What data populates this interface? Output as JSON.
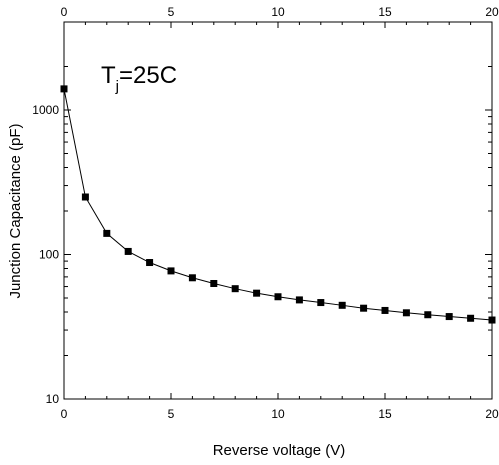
{
  "chart_data": {
    "type": "scatter",
    "title": "",
    "xlabel": "Reverse voltage (V)",
    "ylabel": "Junction Capacitance (pF)",
    "xlim": [
      0,
      20
    ],
    "ylim": [
      10,
      2000
    ],
    "yscale": "log",
    "grid": false,
    "x_ticks": [
      "0",
      "5",
      "10",
      "15",
      "20"
    ],
    "top_x_ticks": [
      "0",
      "5",
      "10",
      "15",
      "20"
    ],
    "y_tick_labels": [
      "10",
      "100",
      "1000"
    ],
    "annotation": {
      "main": "T",
      "sub": "j",
      "rest": "=25C"
    },
    "marker": "square",
    "series": [
      {
        "x": [
          0,
          1,
          2,
          3,
          4,
          5,
          6,
          7,
          8,
          9,
          10,
          11,
          12,
          13,
          14,
          15,
          16,
          17,
          18,
          19,
          20
        ],
        "values": [
          1400,
          250,
          140,
          105,
          88,
          77,
          69,
          63,
          58,
          54,
          51,
          48.5,
          46.5,
          44.5,
          42.5,
          41,
          39.5,
          38.3,
          37.2,
          36.2,
          35.2
        ]
      }
    ]
  }
}
